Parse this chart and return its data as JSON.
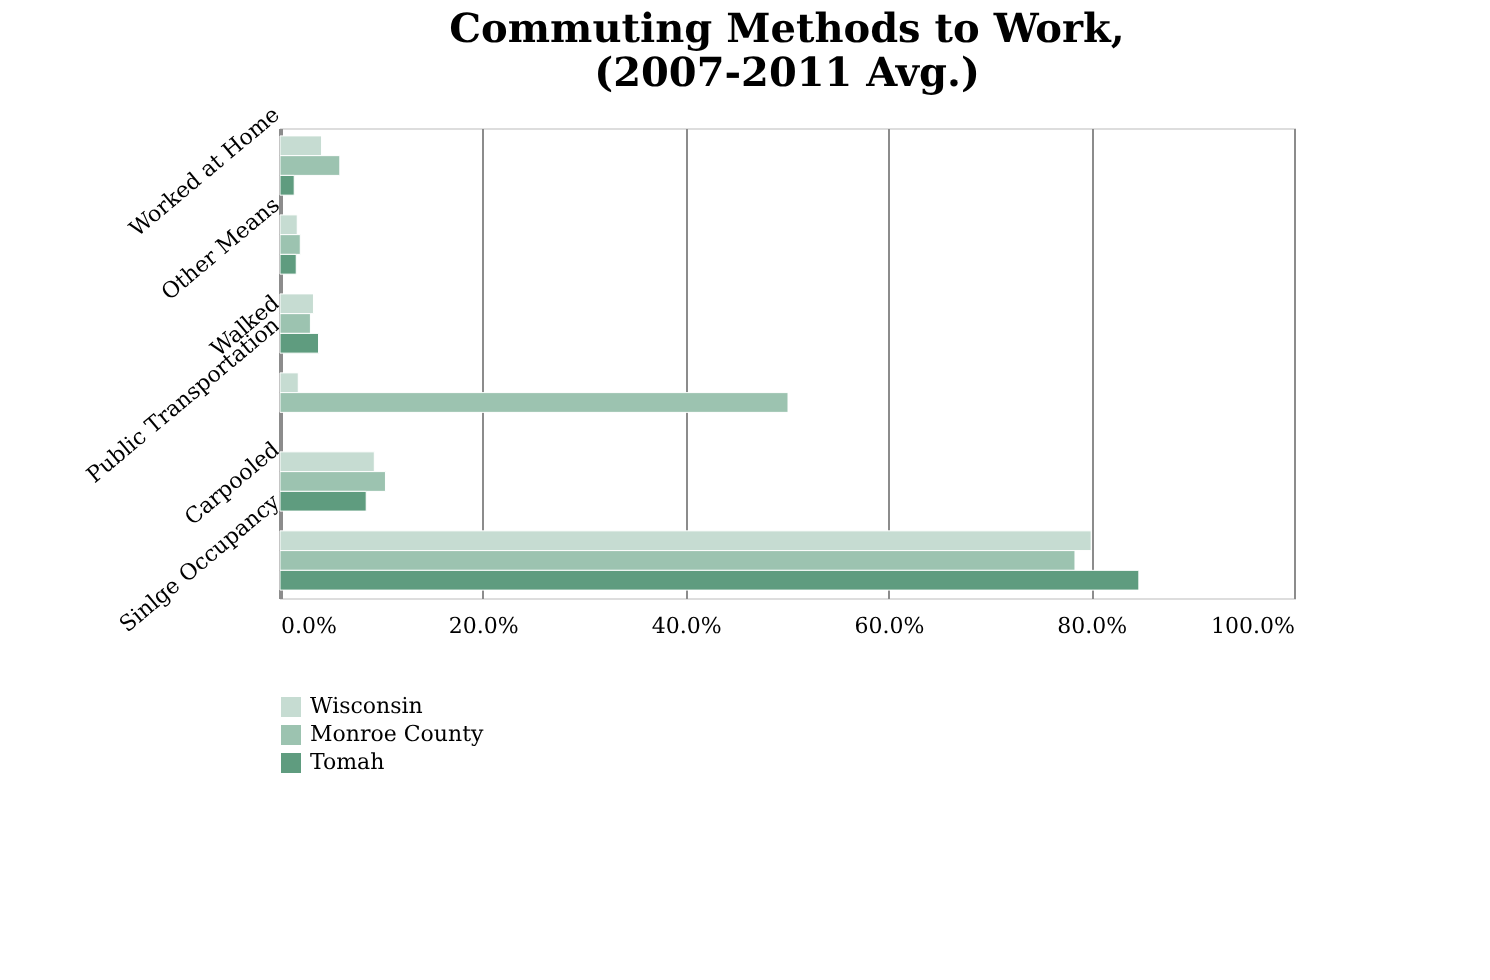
{
  "chart_data": {
    "type": "bar",
    "orientation": "horizontal",
    "title": [
      "Commuting Methods to Work,",
      "(2007-2011 Avg.)"
    ],
    "categories": [
      "Worked at Home",
      "Other Means",
      "Walked",
      "Public Transportation",
      "Carpooled",
      "Sinlge Occupancy"
    ],
    "series": [
      {
        "name": "Wisconsin",
        "color": "#c6dcd2",
        "values": [
          4.1,
          1.7,
          3.3,
          1.8,
          9.3,
          80.0
        ]
      },
      {
        "name": "Monroe County",
        "color": "#9cc3b0",
        "values": [
          5.9,
          2.0,
          3.0,
          50.1,
          10.4,
          78.4
        ]
      },
      {
        "name": "Tomah",
        "color": "#5f9c7f",
        "values": [
          1.4,
          1.6,
          3.8,
          null,
          8.5,
          84.7
        ]
      }
    ],
    "xlim": [
      0,
      100
    ],
    "xticks": [
      {
        "value": 0,
        "label": "0.0%"
      },
      {
        "value": 20,
        "label": "20.0%"
      },
      {
        "value": 40,
        "label": "40.0%"
      },
      {
        "value": 60,
        "label": "60.0%"
      },
      {
        "value": 80,
        "label": "80.0%"
      },
      {
        "value": 100,
        "label": "100.0%"
      }
    ],
    "grid": "x",
    "legend": "bottom"
  }
}
